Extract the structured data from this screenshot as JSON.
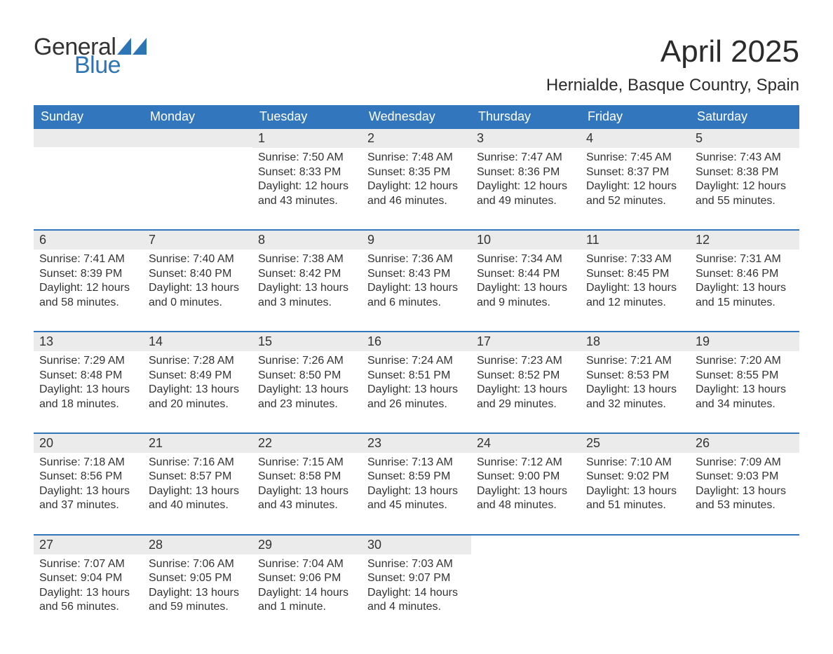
{
  "brand": {
    "word1": "General",
    "word2": "Blue",
    "accent_color": "#2e75b6"
  },
  "title": "April 2025",
  "location": "Hernialde, Basque Country, Spain",
  "colors": {
    "header_bg": "#3277bd",
    "header_text": "#ffffff",
    "daynum_bg": "#ebebeb",
    "week_divider": "#3277bd",
    "body_text": "#333333",
    "page_bg": "#ffffff"
  },
  "weekdays": [
    "Sunday",
    "Monday",
    "Tuesday",
    "Wednesday",
    "Thursday",
    "Friday",
    "Saturday"
  ],
  "weeks": [
    [
      {
        "n": "",
        "sunrise": "",
        "sunset": "",
        "daylight1": "",
        "daylight2": ""
      },
      {
        "n": "",
        "sunrise": "",
        "sunset": "",
        "daylight1": "",
        "daylight2": ""
      },
      {
        "n": "1",
        "sunrise": "Sunrise: 7:50 AM",
        "sunset": "Sunset: 8:33 PM",
        "daylight1": "Daylight: 12 hours",
        "daylight2": "and 43 minutes."
      },
      {
        "n": "2",
        "sunrise": "Sunrise: 7:48 AM",
        "sunset": "Sunset: 8:35 PM",
        "daylight1": "Daylight: 12 hours",
        "daylight2": "and 46 minutes."
      },
      {
        "n": "3",
        "sunrise": "Sunrise: 7:47 AM",
        "sunset": "Sunset: 8:36 PM",
        "daylight1": "Daylight: 12 hours",
        "daylight2": "and 49 minutes."
      },
      {
        "n": "4",
        "sunrise": "Sunrise: 7:45 AM",
        "sunset": "Sunset: 8:37 PM",
        "daylight1": "Daylight: 12 hours",
        "daylight2": "and 52 minutes."
      },
      {
        "n": "5",
        "sunrise": "Sunrise: 7:43 AM",
        "sunset": "Sunset: 8:38 PM",
        "daylight1": "Daylight: 12 hours",
        "daylight2": "and 55 minutes."
      }
    ],
    [
      {
        "n": "6",
        "sunrise": "Sunrise: 7:41 AM",
        "sunset": "Sunset: 8:39 PM",
        "daylight1": "Daylight: 12 hours",
        "daylight2": "and 58 minutes."
      },
      {
        "n": "7",
        "sunrise": "Sunrise: 7:40 AM",
        "sunset": "Sunset: 8:40 PM",
        "daylight1": "Daylight: 13 hours",
        "daylight2": "and 0 minutes."
      },
      {
        "n": "8",
        "sunrise": "Sunrise: 7:38 AM",
        "sunset": "Sunset: 8:42 PM",
        "daylight1": "Daylight: 13 hours",
        "daylight2": "and 3 minutes."
      },
      {
        "n": "9",
        "sunrise": "Sunrise: 7:36 AM",
        "sunset": "Sunset: 8:43 PM",
        "daylight1": "Daylight: 13 hours",
        "daylight2": "and 6 minutes."
      },
      {
        "n": "10",
        "sunrise": "Sunrise: 7:34 AM",
        "sunset": "Sunset: 8:44 PM",
        "daylight1": "Daylight: 13 hours",
        "daylight2": "and 9 minutes."
      },
      {
        "n": "11",
        "sunrise": "Sunrise: 7:33 AM",
        "sunset": "Sunset: 8:45 PM",
        "daylight1": "Daylight: 13 hours",
        "daylight2": "and 12 minutes."
      },
      {
        "n": "12",
        "sunrise": "Sunrise: 7:31 AM",
        "sunset": "Sunset: 8:46 PM",
        "daylight1": "Daylight: 13 hours",
        "daylight2": "and 15 minutes."
      }
    ],
    [
      {
        "n": "13",
        "sunrise": "Sunrise: 7:29 AM",
        "sunset": "Sunset: 8:48 PM",
        "daylight1": "Daylight: 13 hours",
        "daylight2": "and 18 minutes."
      },
      {
        "n": "14",
        "sunrise": "Sunrise: 7:28 AM",
        "sunset": "Sunset: 8:49 PM",
        "daylight1": "Daylight: 13 hours",
        "daylight2": "and 20 minutes."
      },
      {
        "n": "15",
        "sunrise": "Sunrise: 7:26 AM",
        "sunset": "Sunset: 8:50 PM",
        "daylight1": "Daylight: 13 hours",
        "daylight2": "and 23 minutes."
      },
      {
        "n": "16",
        "sunrise": "Sunrise: 7:24 AM",
        "sunset": "Sunset: 8:51 PM",
        "daylight1": "Daylight: 13 hours",
        "daylight2": "and 26 minutes."
      },
      {
        "n": "17",
        "sunrise": "Sunrise: 7:23 AM",
        "sunset": "Sunset: 8:52 PM",
        "daylight1": "Daylight: 13 hours",
        "daylight2": "and 29 minutes."
      },
      {
        "n": "18",
        "sunrise": "Sunrise: 7:21 AM",
        "sunset": "Sunset: 8:53 PM",
        "daylight1": "Daylight: 13 hours",
        "daylight2": "and 32 minutes."
      },
      {
        "n": "19",
        "sunrise": "Sunrise: 7:20 AM",
        "sunset": "Sunset: 8:55 PM",
        "daylight1": "Daylight: 13 hours",
        "daylight2": "and 34 minutes."
      }
    ],
    [
      {
        "n": "20",
        "sunrise": "Sunrise: 7:18 AM",
        "sunset": "Sunset: 8:56 PM",
        "daylight1": "Daylight: 13 hours",
        "daylight2": "and 37 minutes."
      },
      {
        "n": "21",
        "sunrise": "Sunrise: 7:16 AM",
        "sunset": "Sunset: 8:57 PM",
        "daylight1": "Daylight: 13 hours",
        "daylight2": "and 40 minutes."
      },
      {
        "n": "22",
        "sunrise": "Sunrise: 7:15 AM",
        "sunset": "Sunset: 8:58 PM",
        "daylight1": "Daylight: 13 hours",
        "daylight2": "and 43 minutes."
      },
      {
        "n": "23",
        "sunrise": "Sunrise: 7:13 AM",
        "sunset": "Sunset: 8:59 PM",
        "daylight1": "Daylight: 13 hours",
        "daylight2": "and 45 minutes."
      },
      {
        "n": "24",
        "sunrise": "Sunrise: 7:12 AM",
        "sunset": "Sunset: 9:00 PM",
        "daylight1": "Daylight: 13 hours",
        "daylight2": "and 48 minutes."
      },
      {
        "n": "25",
        "sunrise": "Sunrise: 7:10 AM",
        "sunset": "Sunset: 9:02 PM",
        "daylight1": "Daylight: 13 hours",
        "daylight2": "and 51 minutes."
      },
      {
        "n": "26",
        "sunrise": "Sunrise: 7:09 AM",
        "sunset": "Sunset: 9:03 PM",
        "daylight1": "Daylight: 13 hours",
        "daylight2": "and 53 minutes."
      }
    ],
    [
      {
        "n": "27",
        "sunrise": "Sunrise: 7:07 AM",
        "sunset": "Sunset: 9:04 PM",
        "daylight1": "Daylight: 13 hours",
        "daylight2": "and 56 minutes."
      },
      {
        "n": "28",
        "sunrise": "Sunrise: 7:06 AM",
        "sunset": "Sunset: 9:05 PM",
        "daylight1": "Daylight: 13 hours",
        "daylight2": "and 59 minutes."
      },
      {
        "n": "29",
        "sunrise": "Sunrise: 7:04 AM",
        "sunset": "Sunset: 9:06 PM",
        "daylight1": "Daylight: 14 hours",
        "daylight2": "and 1 minute."
      },
      {
        "n": "30",
        "sunrise": "Sunrise: 7:03 AM",
        "sunset": "Sunset: 9:07 PM",
        "daylight1": "Daylight: 14 hours",
        "daylight2": "and 4 minutes."
      },
      {
        "n": "",
        "sunrise": "",
        "sunset": "",
        "daylight1": "",
        "daylight2": ""
      },
      {
        "n": "",
        "sunrise": "",
        "sunset": "",
        "daylight1": "",
        "daylight2": ""
      },
      {
        "n": "",
        "sunrise": "",
        "sunset": "",
        "daylight1": "",
        "daylight2": ""
      }
    ]
  ]
}
